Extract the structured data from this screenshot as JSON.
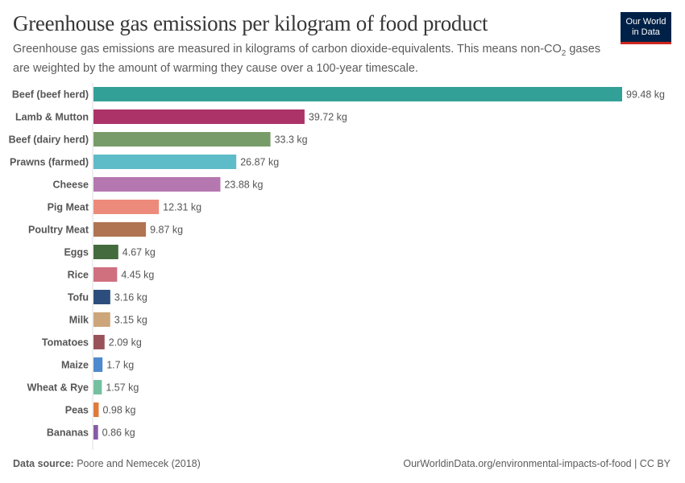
{
  "title": "Greenhouse gas emissions per kilogram of food product",
  "subtitle_part1": "Greenhouse gas emissions are measured in kilograms of carbon dioxide-equivalents. This means non-CO",
  "subtitle_sub": "2",
  "subtitle_part2": " gases are weighted by the amount of warming they cause over a 100-year timescale.",
  "logo": {
    "line1": "Our World",
    "line2": "in Data",
    "bg": "#002147",
    "accent": "#ce261e"
  },
  "footer": {
    "source_label": "Data source:",
    "source": "Poore and Nemecek (2018)",
    "url": "OurWorldinData.org/environmental-impacts-of-food | CC BY"
  },
  "chart_data": {
    "type": "bar",
    "orientation": "horizontal",
    "unit": "kg",
    "xlim": [
      0,
      99.48
    ],
    "grid": false,
    "categories": [
      "Beef (beef herd)",
      "Lamb & Mutton",
      "Beef (dairy herd)",
      "Prawns (farmed)",
      "Cheese",
      "Pig Meat",
      "Poultry Meat",
      "Eggs",
      "Rice",
      "Tofu",
      "Milk",
      "Tomatoes",
      "Maize",
      "Wheat & Rye",
      "Peas",
      "Bananas"
    ],
    "values": [
      99.48,
      39.72,
      33.3,
      26.87,
      23.88,
      12.31,
      9.87,
      4.67,
      4.45,
      3.16,
      3.15,
      2.09,
      1.7,
      1.57,
      0.98,
      0.86
    ],
    "labels": [
      "99.48 kg",
      "39.72 kg",
      "33.3 kg",
      "26.87 kg",
      "23.88 kg",
      "12.31 kg",
      "9.87 kg",
      "4.67 kg",
      "4.45 kg",
      "3.16 kg",
      "3.15 kg",
      "2.09 kg",
      "1.7 kg",
      "1.57 kg",
      "0.98 kg",
      "0.86 kg"
    ],
    "colors": [
      "#33a098",
      "#ac3368",
      "#789c69",
      "#5ebbc8",
      "#b577b0",
      "#ec8b7b",
      "#b07452",
      "#436b3d",
      "#d0707f",
      "#2d4e7c",
      "#cca57a",
      "#9a525a",
      "#4d8ad0",
      "#74c0a0",
      "#e07a3a",
      "#8a5aa8"
    ]
  }
}
